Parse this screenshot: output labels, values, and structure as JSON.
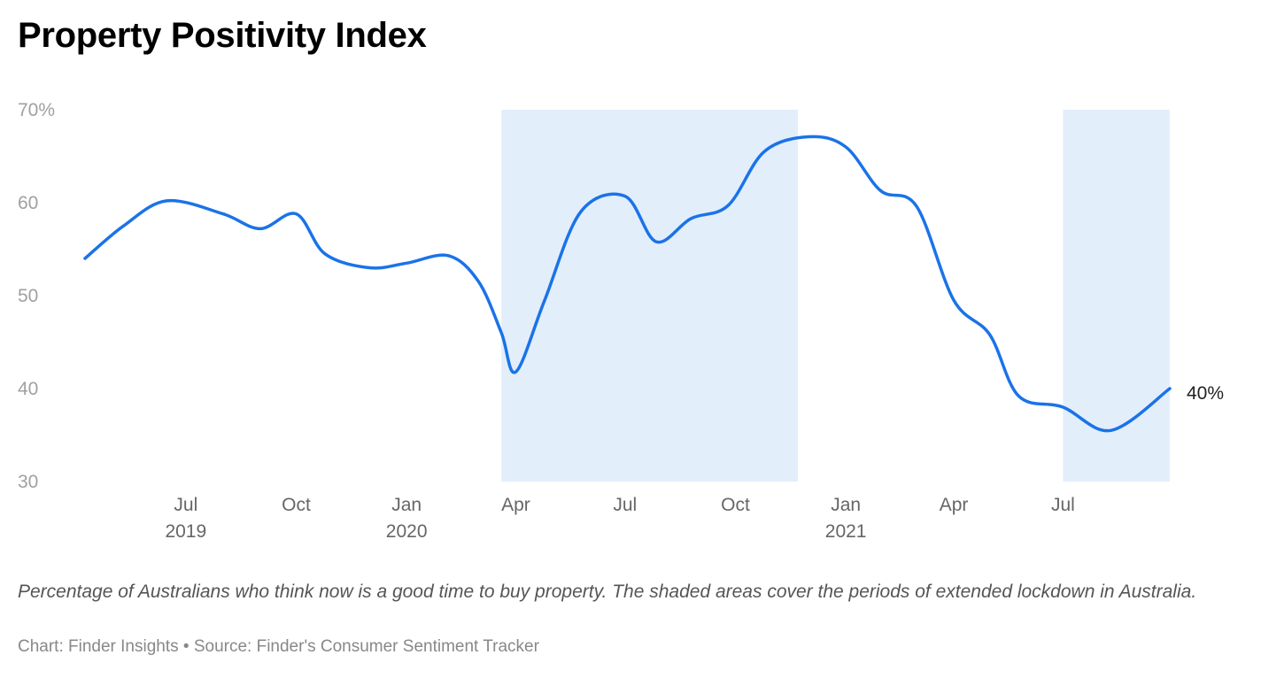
{
  "chart_data": {
    "type": "line",
    "title": "Property Positivity Index",
    "caption": "Percentage of Australians who think now is a good time to buy property. The shaded areas cover the periods of extended lockdown in Australia.",
    "source_line": "Chart: Finder Insights • Source: Finder's Consumer Sentiment Tracker",
    "ylim": [
      30,
      70
    ],
    "y_ticks": [
      {
        "value": 70,
        "label": "70%"
      },
      {
        "value": 60,
        "label": "60"
      },
      {
        "value": 50,
        "label": "50"
      },
      {
        "value": 40,
        "label": "40"
      },
      {
        "value": 30,
        "label": "30"
      }
    ],
    "xlim": [
      "2019-04-08",
      "2021-09-28"
    ],
    "x_ticks": [
      {
        "date": "2019-07-01",
        "label": "Jul",
        "year": "2019"
      },
      {
        "date": "2019-10-01",
        "label": "Oct",
        "year": ""
      },
      {
        "date": "2020-01-01",
        "label": "Jan",
        "year": "2020"
      },
      {
        "date": "2020-04-01",
        "label": "Apr",
        "year": ""
      },
      {
        "date": "2020-07-01",
        "label": "Jul",
        "year": ""
      },
      {
        "date": "2020-10-01",
        "label": "Oct",
        "year": ""
      },
      {
        "date": "2021-01-01",
        "label": "Jan",
        "year": "2021"
      },
      {
        "date": "2021-04-01",
        "label": "Apr",
        "year": ""
      },
      {
        "date": "2021-07-01",
        "label": "Jul",
        "year": ""
      }
    ],
    "shaded_periods": [
      {
        "start": "2020-03-20",
        "end": "2020-11-22"
      },
      {
        "start": "2021-07-01",
        "end": "2021-09-28"
      }
    ],
    "series": [
      {
        "color": "#1a73e8",
        "end_label": "40%",
        "points": [
          {
            "x": "2019-04-08",
            "y": 54
          },
          {
            "x": "2019-05-10",
            "y": 57.5
          },
          {
            "x": "2019-06-15",
            "y": 60.2
          },
          {
            "x": "2019-08-01",
            "y": 58.8
          },
          {
            "x": "2019-09-01",
            "y": 57.2
          },
          {
            "x": "2019-10-01",
            "y": 58.8
          },
          {
            "x": "2019-10-25",
            "y": 54.5
          },
          {
            "x": "2019-12-01",
            "y": 53
          },
          {
            "x": "2020-01-01",
            "y": 53.5
          },
          {
            "x": "2020-02-05",
            "y": 54.3
          },
          {
            "x": "2020-03-01",
            "y": 51.5
          },
          {
            "x": "2020-03-20",
            "y": 46
          },
          {
            "x": "2020-04-01",
            "y": 41.8
          },
          {
            "x": "2020-04-25",
            "y": 49.5
          },
          {
            "x": "2020-05-25",
            "y": 59
          },
          {
            "x": "2020-07-01",
            "y": 60.7
          },
          {
            "x": "2020-07-27",
            "y": 55.8
          },
          {
            "x": "2020-08-25",
            "y": 58.3
          },
          {
            "x": "2020-09-25",
            "y": 59.7
          },
          {
            "x": "2020-10-25",
            "y": 65.5
          },
          {
            "x": "2020-12-01",
            "y": 67.1
          },
          {
            "x": "2021-01-01",
            "y": 66
          },
          {
            "x": "2021-01-30",
            "y": 61.3
          },
          {
            "x": "2021-03-01",
            "y": 59.6
          },
          {
            "x": "2021-04-01",
            "y": 49.5
          },
          {
            "x": "2021-05-01",
            "y": 45.8
          },
          {
            "x": "2021-05-25",
            "y": 39.2
          },
          {
            "x": "2021-07-01",
            "y": 38
          },
          {
            "x": "2021-08-10",
            "y": 35.5
          },
          {
            "x": "2021-09-28",
            "y": 40
          }
        ]
      }
    ]
  }
}
